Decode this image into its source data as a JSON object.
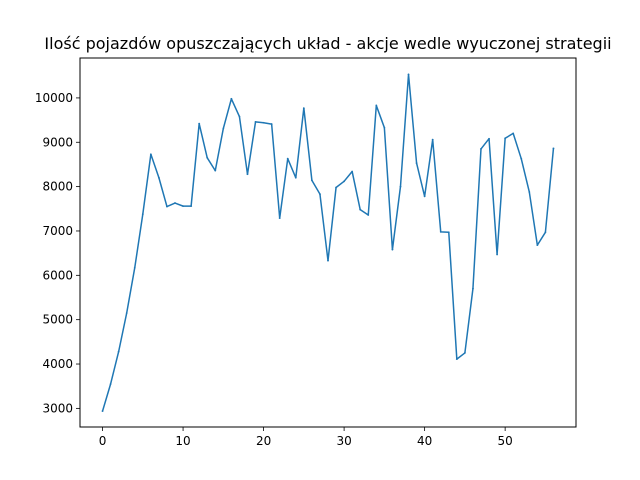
{
  "chart_data": {
    "type": "line",
    "title": "Ilość pojazdów opuszczających układ - akcje wedle wyuczonej strategii",
    "xlabel": "",
    "ylabel": "",
    "xlim": [
      -2.8,
      58.8
    ],
    "ylim": [
      2580,
      10900
    ],
    "x_ticks": [
      0,
      10,
      20,
      30,
      40,
      50
    ],
    "y_ticks": [
      3000,
      4000,
      5000,
      6000,
      7000,
      8000,
      9000,
      10000
    ],
    "grid": false,
    "legend": "none",
    "line_color": "#1f77b4",
    "series": [
      {
        "x": [
          0,
          1,
          2,
          3,
          4,
          5,
          6,
          7,
          8,
          9,
          10,
          11,
          12,
          13,
          14,
          15,
          16,
          17,
          18,
          19,
          20,
          21,
          22,
          23,
          24,
          25,
          26,
          27,
          28,
          29,
          30,
          31,
          32,
          33,
          34,
          35,
          36,
          37,
          38,
          39,
          40,
          41,
          42,
          43,
          44,
          45,
          46,
          47,
          48,
          49,
          50,
          51,
          52,
          53,
          54,
          55,
          56
        ],
        "values": [
          2940,
          3550,
          4280,
          5150,
          6170,
          7380,
          8730,
          8200,
          7550,
          7630,
          7560,
          7560,
          9420,
          8650,
          8360,
          9310,
          9980,
          9580,
          8280,
          9460,
          9440,
          9410,
          7290,
          8630,
          8200,
          9770,
          8140,
          7830,
          6330,
          7980,
          8120,
          8340,
          7480,
          7360,
          9830,
          9330,
          6580,
          8000,
          10530,
          8530,
          7780,
          9060,
          6980,
          6970,
          4110,
          4250,
          5700,
          8850,
          9080,
          6470,
          9090,
          9200,
          8630,
          7880,
          6680,
          6970,
          8860
        ]
      }
    ]
  }
}
